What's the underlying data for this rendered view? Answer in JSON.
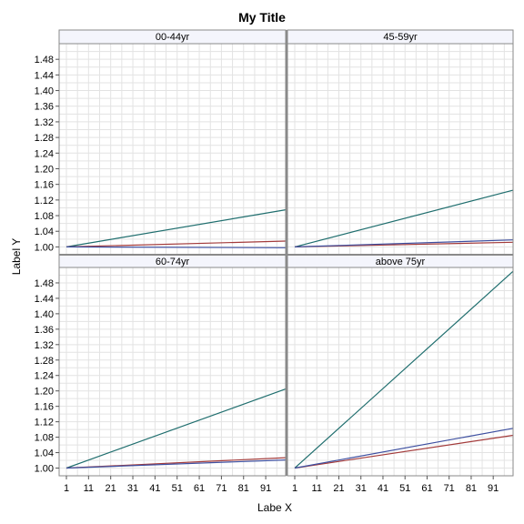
{
  "chart_data": {
    "type": "line",
    "title": "My Title",
    "xlabel": "Labe X",
    "ylabel": "Label Y",
    "xlim": [
      1,
      100
    ],
    "ylim": [
      0.98,
      1.52
    ],
    "xticks": [
      1,
      11,
      21,
      31,
      41,
      51,
      61,
      71,
      81,
      91
    ],
    "yticks": [
      1.0,
      1.04,
      1.08,
      1.12,
      1.16,
      1.2,
      1.24,
      1.28,
      1.32,
      1.36,
      1.4,
      1.44,
      1.48
    ],
    "grid": true,
    "colors": {
      "teal": "#1f6e6e",
      "red": "#a33b3b",
      "blue": "#3d4fa0"
    },
    "panels": [
      {
        "label": "00-44yr",
        "series": [
          {
            "color": "teal",
            "x": [
              1,
              100
            ],
            "values": [
              1.0,
              1.095
            ]
          },
          {
            "color": "red",
            "x": [
              1,
              100
            ],
            "values": [
              1.0,
              1.015
            ]
          },
          {
            "color": "blue",
            "x": [
              1,
              100
            ],
            "values": [
              1.0,
              0.998
            ]
          }
        ]
      },
      {
        "label": "45-59yr",
        "series": [
          {
            "color": "teal",
            "x": [
              1,
              100
            ],
            "values": [
              1.0,
              1.145
            ]
          },
          {
            "color": "red",
            "x": [
              1,
              100
            ],
            "values": [
              1.0,
              1.012
            ]
          },
          {
            "color": "blue",
            "x": [
              1,
              100
            ],
            "values": [
              1.0,
              1.018
            ]
          }
        ]
      },
      {
        "label": "60-74yr",
        "series": [
          {
            "color": "teal",
            "x": [
              1,
              100
            ],
            "values": [
              1.0,
              1.205
            ]
          },
          {
            "color": "red",
            "x": [
              1,
              100
            ],
            "values": [
              1.0,
              1.027
            ]
          },
          {
            "color": "blue",
            "x": [
              1,
              100
            ],
            "values": [
              1.0,
              1.021
            ]
          }
        ]
      },
      {
        "label": "above 75yr",
        "series": [
          {
            "color": "teal",
            "x": [
              1,
              100
            ],
            "values": [
              1.0,
              1.51
            ]
          },
          {
            "color": "red",
            "x": [
              1,
              100
            ],
            "values": [
              1.0,
              1.085
            ]
          },
          {
            "color": "blue",
            "x": [
              1,
              100
            ],
            "values": [
              1.0,
              1.103
            ]
          }
        ]
      }
    ]
  }
}
